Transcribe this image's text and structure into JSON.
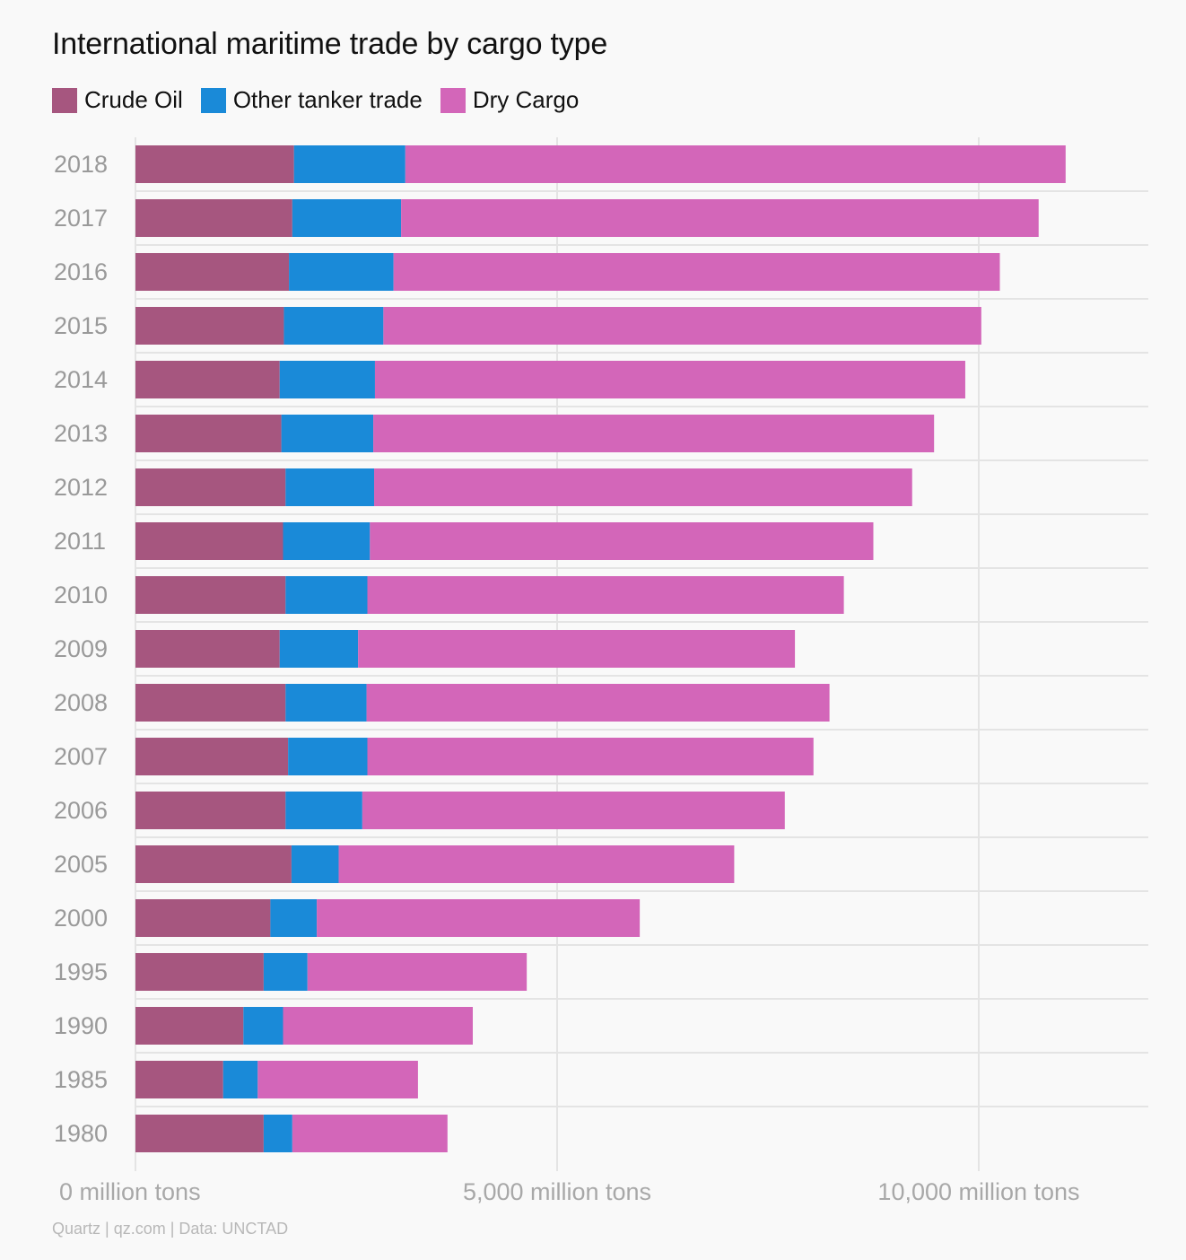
{
  "title": "International maritime trade by cargo type",
  "source": "Quartz | qz.com | Data: UNCTAD",
  "colors": {
    "crude_oil": "#a6567f",
    "other_tanker": "#1a8ad8",
    "dry_cargo": "#d366b9",
    "grid": "#e4e4e4",
    "year_label": "#9a9a9a",
    "tick_label": "#a8a8a8",
    "background": "#f9f9f9"
  },
  "chart_data": {
    "type": "bar",
    "orientation": "horizontal",
    "stacked": true,
    "title": "International maritime trade by cargo type",
    "xlabel": "",
    "ylabel": "",
    "xlim": [
      0,
      12000
    ],
    "x_ticks": [
      0,
      5000,
      10000
    ],
    "x_tick_labels": [
      "0 million tons",
      "5,000 million tons",
      "10,000 million tons"
    ],
    "grid": true,
    "legend_position": "top-left",
    "categories": [
      "2018",
      "2017",
      "2016",
      "2015",
      "2014",
      "2013",
      "2012",
      "2011",
      "2010",
      "2009",
      "2008",
      "2007",
      "2006",
      "2005",
      "2000",
      "1995",
      "1990",
      "1985",
      "1980"
    ],
    "series": [
      {
        "name": "Crude Oil",
        "color": "#a6567f",
        "values": [
          1880,
          1860,
          1820,
          1760,
          1710,
          1730,
          1780,
          1750,
          1780,
          1710,
          1780,
          1810,
          1780,
          1850,
          1600,
          1520,
          1280,
          1040,
          1520
        ]
      },
      {
        "name": "Other tanker trade",
        "color": "#1a8ad8",
        "values": [
          1320,
          1290,
          1240,
          1180,
          1130,
          1090,
          1050,
          1030,
          970,
          930,
          960,
          940,
          910,
          560,
          550,
          520,
          470,
          410,
          340
        ]
      },
      {
        "name": "Dry Cargo",
        "color": "#d366b9",
        "values": [
          7830,
          7560,
          7190,
          7090,
          7000,
          6650,
          6380,
          5970,
          5650,
          5180,
          5490,
          5290,
          5010,
          4690,
          3830,
          2600,
          2250,
          1900,
          1840
        ]
      }
    ]
  }
}
